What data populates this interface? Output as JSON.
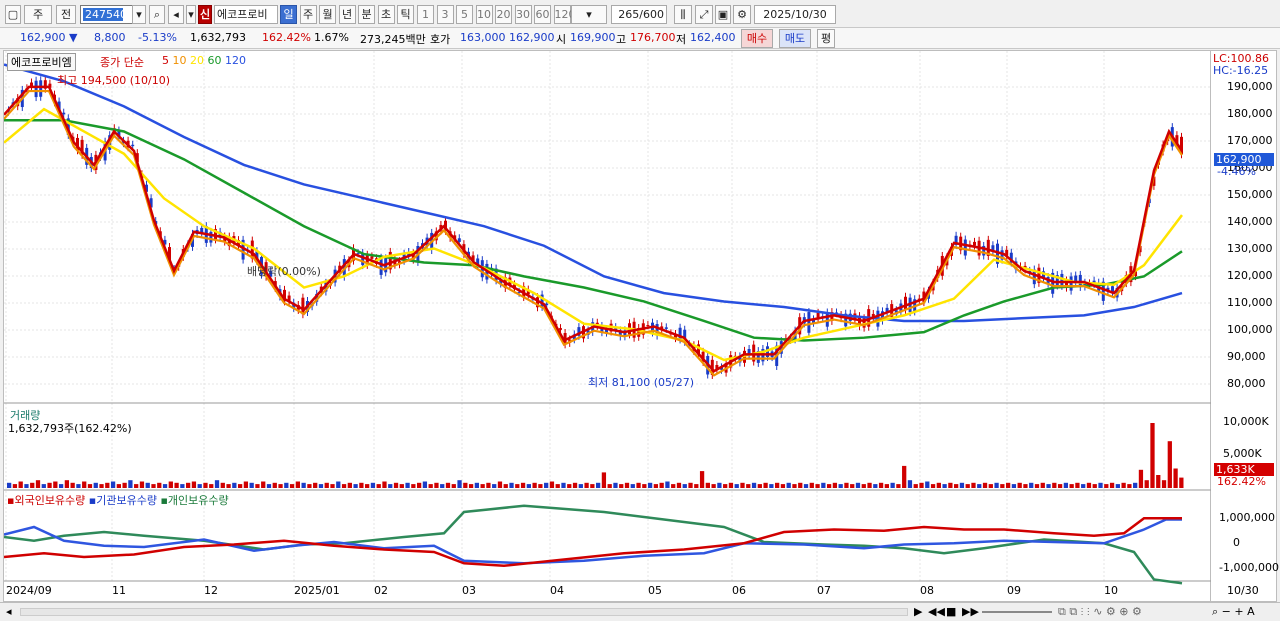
{
  "toolbar": {
    "market": "주",
    "prev": "전",
    "code": "247540",
    "stock_badge": "신",
    "stock_name": "에코프로비",
    "periods": [
      "일",
      "주",
      "월",
      "년",
      "분",
      "초",
      "틱"
    ],
    "active_period": "일",
    "intervals": [
      "1",
      "3",
      "5",
      "10",
      "20",
      "30",
      "60",
      "120"
    ],
    "count": "265",
    "count_max": "/600",
    "date": "2025/10/30"
  },
  "quote": {
    "price": "162,900",
    "change": "8,800",
    "change_pct": "-5.13%",
    "volume": "1,632,793",
    "vol_ratio": "162.42%",
    "turnover_pct": "1.67%",
    "amount": "273,245백만",
    "ask_label": "호가",
    "ask": "163,000",
    "bid": "162,900",
    "open_label": "시",
    "open": "169,900",
    "high_label": "고",
    "high": "176,700",
    "low_label": "저",
    "low": "162,400",
    "buy": "매수",
    "sell": "매도",
    "eval": "평"
  },
  "price_panel": {
    "stock": "에코프로비엠",
    "ma_title": "종가 단순",
    "ma_periods": [
      "5",
      "10",
      "20",
      "60",
      "120"
    ],
    "ma_colors": [
      "#d00000",
      "#f09000",
      "#ffe400",
      "#1a9a2a",
      "#2850e0"
    ],
    "high_note": "최고 194,500 (10/10)",
    "low_note": "최저 81,100 (05/27)",
    "rate_note": "배당락(0.00%)",
    "lc": "LC:100.86",
    "hc": "HC:-16.25",
    "y_ticks": [
      "190,000",
      "180,000",
      "170,000",
      "160,000",
      "150,000",
      "140,000",
      "130,000",
      "120,000",
      "110,000",
      "100,000",
      "90,000",
      "80,000"
    ],
    "current_tag": "162,900",
    "current_pct": "-4.46%"
  },
  "volume_panel": {
    "title": "거래량",
    "value": "1,632,793주(162.42%)",
    "y_ticks": [
      "10,000K",
      "5,000K"
    ],
    "tag": "1,633K",
    "tag_pct": "162.42%"
  },
  "holding_panel": {
    "series": [
      "외국인보유수량",
      "기관보유수량",
      "개인보유수량"
    ],
    "y_ticks": [
      "1,000,000",
      "0",
      "-1,000,000"
    ]
  },
  "x_axis": [
    "2024/09",
    "11",
    "12",
    "2025/01",
    "02",
    "03",
    "04",
    "05",
    "06",
    "07",
    "08",
    "09",
    "10"
  ],
  "x_end": "10/30",
  "chart_data": {
    "type": "line",
    "title": "",
    "y_range": [
      76000,
      198000
    ],
    "ma5": [
      [
        0,
        178000
      ],
      [
        25,
        188000
      ],
      [
        45,
        188000
      ],
      [
        70,
        168000
      ],
      [
        90,
        160000
      ],
      [
        110,
        172000
      ],
      [
        130,
        165000
      ],
      [
        150,
        140000
      ],
      [
        170,
        122000
      ],
      [
        190,
        136000
      ],
      [
        220,
        134000
      ],
      [
        250,
        128000
      ],
      [
        280,
        112000
      ],
      [
        300,
        108000
      ],
      [
        330,
        120000
      ],
      [
        350,
        128000
      ],
      [
        380,
        124000
      ],
      [
        410,
        128000
      ],
      [
        440,
        138000
      ],
      [
        470,
        125000
      ],
      [
        500,
        118000
      ],
      [
        540,
        110000
      ],
      [
        560,
        97000
      ],
      [
        590,
        102000
      ],
      [
        620,
        100000
      ],
      [
        650,
        102000
      ],
      [
        680,
        98000
      ],
      [
        710,
        86000
      ],
      [
        740,
        92000
      ],
      [
        770,
        92000
      ],
      [
        800,
        104000
      ],
      [
        830,
        106000
      ],
      [
        860,
        104000
      ],
      [
        890,
        108000
      ],
      [
        920,
        112000
      ],
      [
        950,
        132000
      ],
      [
        980,
        130000
      ],
      [
        1000,
        128000
      ],
      [
        1020,
        122000
      ],
      [
        1050,
        118000
      ],
      [
        1080,
        118000
      ],
      [
        1110,
        114000
      ],
      [
        1130,
        122000
      ],
      [
        1150,
        158000
      ],
      [
        1165,
        172000
      ],
      [
        1178,
        165000
      ]
    ],
    "ma20": [
      [
        0,
        168000
      ],
      [
        40,
        180000
      ],
      [
        80,
        172000
      ],
      [
        120,
        164000
      ],
      [
        160,
        148000
      ],
      [
        200,
        138000
      ],
      [
        250,
        130000
      ],
      [
        300,
        116000
      ],
      [
        340,
        120000
      ],
      [
        380,
        127000
      ],
      [
        430,
        130000
      ],
      [
        480,
        123000
      ],
      [
        530,
        114000
      ],
      [
        580,
        103000
      ],
      [
        630,
        101000
      ],
      [
        680,
        97000
      ],
      [
        720,
        90000
      ],
      [
        760,
        93000
      ],
      [
        800,
        98000
      ],
      [
        850,
        102000
      ],
      [
        900,
        106000
      ],
      [
        950,
        112000
      ],
      [
        990,
        126000
      ],
      [
        1030,
        122000
      ],
      [
        1070,
        118000
      ],
      [
        1110,
        117000
      ],
      [
        1140,
        124000
      ],
      [
        1178,
        142000
      ]
    ],
    "ma60": [
      [
        0,
        176000
      ],
      [
        60,
        176000
      ],
      [
        120,
        172000
      ],
      [
        180,
        162000
      ],
      [
        240,
        150000
      ],
      [
        300,
        138000
      ],
      [
        360,
        128000
      ],
      [
        420,
        125000
      ],
      [
        470,
        124000
      ],
      [
        520,
        120000
      ],
      [
        580,
        116000
      ],
      [
        640,
        111000
      ],
      [
        700,
        104000
      ],
      [
        750,
        98000
      ],
      [
        800,
        97000
      ],
      [
        860,
        98000
      ],
      [
        920,
        100000
      ],
      [
        960,
        106000
      ],
      [
        1000,
        111000
      ],
      [
        1050,
        116000
      ],
      [
        1100,
        117000
      ],
      [
        1140,
        120000
      ],
      [
        1178,
        129000
      ]
    ],
    "ma120": [
      [
        0,
        196000
      ],
      [
        60,
        190000
      ],
      [
        120,
        181000
      ],
      [
        180,
        170000
      ],
      [
        240,
        160000
      ],
      [
        300,
        153000
      ],
      [
        360,
        148000
      ],
      [
        420,
        143000
      ],
      [
        480,
        138000
      ],
      [
        540,
        131000
      ],
      [
        600,
        120000
      ],
      [
        660,
        114000
      ],
      [
        720,
        111000
      ],
      [
        780,
        109000
      ],
      [
        840,
        106000
      ],
      [
        900,
        104000
      ],
      [
        960,
        104000
      ],
      [
        1020,
        105000
      ],
      [
        1080,
        106000
      ],
      [
        1130,
        109000
      ],
      [
        1178,
        114000
      ]
    ],
    "volume": [
      4,
      3,
      5,
      3,
      4,
      6,
      3,
      4,
      5,
      3,
      6,
      4,
      3,
      5,
      3,
      4,
      3,
      4,
      5,
      3,
      4,
      6,
      3,
      5,
      4,
      3,
      4,
      3,
      5,
      4,
      3,
      4,
      5,
      3,
      4,
      3,
      6,
      4,
      3,
      4,
      3,
      5,
      4,
      3,
      5,
      3,
      4,
      3,
      4,
      3,
      5,
      4,
      3,
      4,
      3,
      4,
      3,
      5,
      3,
      4,
      3,
      4,
      3,
      4,
      3,
      5,
      3,
      4,
      3,
      4,
      3,
      4,
      5,
      3,
      4,
      3,
      4,
      3,
      6,
      4,
      3,
      4,
      3,
      4,
      3,
      5,
      3,
      4,
      3,
      4,
      3,
      4,
      3,
      4,
      5,
      3,
      4,
      3,
      4,
      3,
      4,
      3,
      4,
      12,
      3,
      4,
      3,
      4,
      3,
      4,
      3,
      4,
      3,
      4,
      5,
      3,
      4,
      3,
      4,
      3,
      13,
      4,
      3,
      4,
      3,
      4,
      3,
      4,
      3,
      4,
      3,
      4,
      3,
      4,
      3,
      4,
      3,
      4,
      3,
      4,
      3,
      4,
      3,
      4,
      3,
      4,
      3,
      4,
      3,
      4,
      3,
      4,
      3,
      4,
      3,
      17,
      6,
      3,
      4,
      5,
      3,
      4,
      3,
      4,
      3,
      4,
      3,
      4,
      3,
      4,
      3,
      4,
      3,
      4,
      3,
      4,
      3,
      4,
      3,
      4,
      3,
      4,
      3,
      4,
      3,
      4,
      3,
      4,
      3,
      4,
      3,
      4,
      3,
      4,
      3,
      4,
      14,
      6,
      50,
      10,
      6,
      36,
      15,
      8
    ],
    "foreign": [
      [
        0,
        -0.6
      ],
      [
        40,
        -0.45
      ],
      [
        80,
        -0.6
      ],
      [
        130,
        -0.5
      ],
      [
        180,
        -0.2
      ],
      [
        230,
        -0.1
      ],
      [
        280,
        0.05
      ],
      [
        330,
        -0.15
      ],
      [
        380,
        -0.3
      ],
      [
        430,
        -0.4
      ],
      [
        460,
        -0.85
      ],
      [
        500,
        -0.95
      ],
      [
        560,
        -0.7
      ],
      [
        620,
        -0.45
      ],
      [
        680,
        -0.3
      ],
      [
        740,
        -0.05
      ],
      [
        780,
        0.4
      ],
      [
        830,
        0.5
      ],
      [
        880,
        0.45
      ],
      [
        920,
        0.6
      ],
      [
        960,
        0.5
      ],
      [
        1000,
        0.5
      ],
      [
        1050,
        0.35
      ],
      [
        1090,
        0.25
      ],
      [
        1120,
        0.35
      ],
      [
        1140,
        0.95
      ],
      [
        1178,
        0.95
      ]
    ],
    "inst": [
      [
        0,
        0.3
      ],
      [
        30,
        0.6
      ],
      [
        60,
        0.05
      ],
      [
        100,
        -0.15
      ],
      [
        140,
        -0.2
      ],
      [
        200,
        0.1
      ],
      [
        250,
        -0.35
      ],
      [
        290,
        -0.15
      ],
      [
        330,
        0.0
      ],
      [
        380,
        -0.25
      ],
      [
        430,
        -0.15
      ],
      [
        460,
        -0.75
      ],
      [
        520,
        -0.85
      ],
      [
        580,
        -0.75
      ],
      [
        640,
        -0.55
      ],
      [
        700,
        -0.45
      ],
      [
        740,
        -0.05
      ],
      [
        800,
        -0.1
      ],
      [
        860,
        -0.25
      ],
      [
        900,
        -0.1
      ],
      [
        950,
        -0.05
      ],
      [
        1000,
        0.05
      ],
      [
        1050,
        0.0
      ],
      [
        1100,
        -0.05
      ],
      [
        1140,
        0.5
      ],
      [
        1162,
        0.9
      ],
      [
        1178,
        0.9
      ]
    ],
    "indiv": [
      [
        0,
        0.2
      ],
      [
        30,
        0.05
      ],
      [
        60,
        0.25
      ],
      [
        100,
        0.4
      ],
      [
        140,
        0.25
      ],
      [
        200,
        0.05
      ],
      [
        260,
        -0.3
      ],
      [
        300,
        -0.1
      ],
      [
        340,
        -0.05
      ],
      [
        400,
        0.2
      ],
      [
        440,
        0.35
      ],
      [
        460,
        1.2
      ],
      [
        520,
        1.45
      ],
      [
        600,
        1.2
      ],
      [
        660,
        0.9
      ],
      [
        720,
        0.6
      ],
      [
        760,
        0.0
      ],
      [
        820,
        -0.1
      ],
      [
        860,
        -0.15
      ],
      [
        900,
        -0.25
      ],
      [
        940,
        -0.45
      ],
      [
        980,
        -0.25
      ],
      [
        1040,
        0.1
      ],
      [
        1100,
        -0.05
      ],
      [
        1130,
        -0.4
      ],
      [
        1150,
        -1.5
      ],
      [
        1178,
        -1.65
      ]
    ]
  }
}
